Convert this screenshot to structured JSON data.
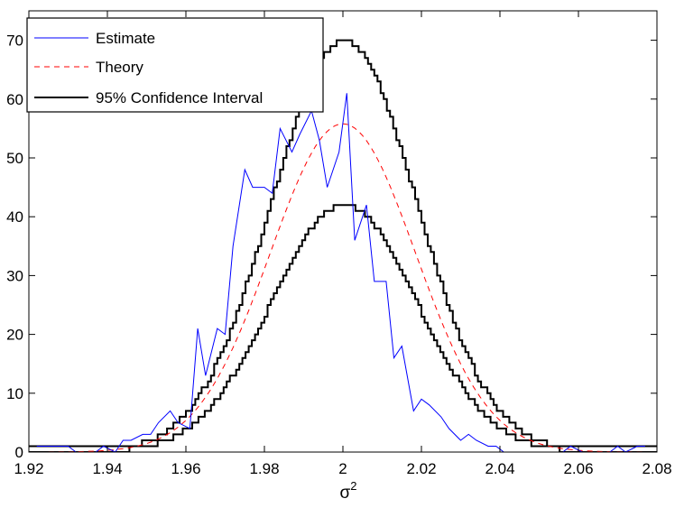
{
  "chart_data": {
    "type": "line",
    "title": "",
    "xlabel": "σ",
    "xlabel_superscript": "2",
    "ylabel": "",
    "xlim": [
      1.92,
      2.08
    ],
    "ylim": [
      0,
      75
    ],
    "xticks": [
      1.92,
      1.94,
      1.96,
      1.98,
      2,
      2.02,
      2.04,
      2.06,
      2.08
    ],
    "xtick_labels": [
      "1.92",
      "1.94",
      "1.96",
      "1.98",
      "2",
      "2.02",
      "2.04",
      "2.06",
      "2.08"
    ],
    "yticks": [
      0,
      10,
      20,
      30,
      40,
      50,
      60,
      70
    ],
    "ytick_labels": [
      "0",
      "10",
      "20",
      "30",
      "40",
      "50",
      "60",
      "70"
    ],
    "grid": false,
    "legend_position": "top-left",
    "series": [
      {
        "name": "Estimate",
        "style": "solid",
        "color": "#0000ff",
        "x": [
          1.922,
          1.925,
          1.927,
          1.93,
          1.932,
          1.934,
          1.937,
          1.939,
          1.942,
          1.944,
          1.946,
          1.949,
          1.951,
          1.953,
          1.956,
          1.958,
          1.961,
          1.963,
          1.965,
          1.968,
          1.97,
          1.972,
          1.975,
          1.977,
          1.98,
          1.982,
          1.984,
          1.987,
          1.989,
          1.992,
          1.994,
          1.996,
          1.999,
          2.001,
          2.003,
          2.006,
          2.008,
          2.011,
          2.013,
          2.015,
          2.018,
          2.02,
          2.022,
          2.025,
          2.027,
          2.03,
          2.032,
          2.034,
          2.037,
          2.039,
          2.041,
          2.044,
          2.046,
          2.049,
          2.051,
          2.053,
          2.056,
          2.058,
          2.061,
          2.063,
          2.065,
          2.068,
          2.07,
          2.072,
          2.075,
          2.077
        ],
        "y": [
          1,
          1,
          1,
          1,
          0,
          0,
          0,
          1,
          0,
          2,
          2,
          3,
          3,
          5,
          7,
          5,
          4,
          21,
          13,
          21,
          20,
          35,
          48,
          45,
          45,
          44,
          55,
          51,
          54,
          58,
          53,
          45,
          51,
          61,
          36,
          42,
          29,
          29,
          16,
          18,
          7,
          9,
          8,
          6,
          4,
          2,
          3,
          2,
          1,
          1,
          0,
          0,
          0,
          0,
          0,
          0,
          0,
          1,
          0,
          0,
          0,
          0,
          1,
          0,
          1,
          1
        ]
      },
      {
        "name": "Theory",
        "style": "dashed",
        "color": "#ff0000",
        "mean": 2.0,
        "peak": 55.8,
        "sigma": 0.0185
      },
      {
        "name": "95% Confidence Interval",
        "style": "solid",
        "color": "#000000",
        "upper_peak": 70,
        "lower_peak": 42
      }
    ]
  }
}
